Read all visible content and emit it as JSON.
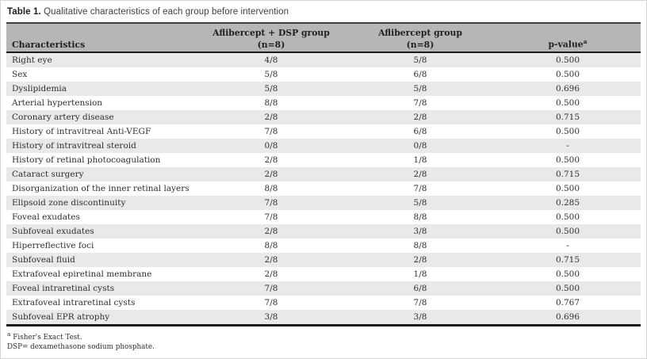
{
  "caption": {
    "label": "Table 1.",
    "text": "Qualitative characteristics of each group before intervention"
  },
  "table": {
    "col1_header": "Characteristics",
    "group1_header": "Aflibercept + DSP group",
    "group1_n": "(n=8)",
    "group2_header": "Aflibercept group",
    "group2_n": "(n=8)",
    "pvalue_header": "p-value",
    "pvalue_sup": "a",
    "rows": [
      {
        "label": "Right eye",
        "g1": "4/8",
        "g2": "5/8",
        "p": "0.500"
      },
      {
        "label": "Sex",
        "g1": "5/8",
        "g2": "6/8",
        "p": "0.500"
      },
      {
        "label": "Dyslipidemia",
        "g1": "5/8",
        "g2": "5/8",
        "p": "0.696"
      },
      {
        "label": "Arterial hypertension",
        "g1": "8/8",
        "g2": "7/8",
        "p": "0.500"
      },
      {
        "label": "Coronary artery disease",
        "g1": "2/8",
        "g2": "2/8",
        "p": "0.715"
      },
      {
        "label": "History of intravitreal Anti-VEGF",
        "g1": "7/8",
        "g2": "6/8",
        "p": "0.500"
      },
      {
        "label": "History of intravitreal steroid",
        "g1": "0/8",
        "g2": "0/8",
        "p": "-"
      },
      {
        "label": "History of retinal photocoagulation",
        "g1": "2/8",
        "g2": "1/8",
        "p": "0.500"
      },
      {
        "label": "Cataract surgery",
        "g1": "2/8",
        "g2": "2/8",
        "p": "0.715"
      },
      {
        "label": "Disorganization of the inner retinal layers",
        "g1": "8/8",
        "g2": "7/8",
        "p": "0.500"
      },
      {
        "label": "Elipsoid zone discontinuity",
        "g1": "7/8",
        "g2": "5/8",
        "p": "0.285"
      },
      {
        "label": "Foveal exudates",
        "g1": "7/8",
        "g2": "8/8",
        "p": "0.500"
      },
      {
        "label": "Subfoveal exudates",
        "g1": "2/8",
        "g2": "3/8",
        "p": "0.500"
      },
      {
        "label": "Hiperreflective foci",
        "g1": "8/8",
        "g2": "8/8",
        "p": "-"
      },
      {
        "label": "Subfoveal fluid",
        "g1": "2/8",
        "g2": "2/8",
        "p": "0.715"
      },
      {
        "label": "Extrafoveal epiretinal membrane",
        "g1": "2/8",
        "g2": "1/8",
        "p": "0.500"
      },
      {
        "label": "Foveal intraretinal cysts",
        "g1": "7/8",
        "g2": "6/8",
        "p": "0.500"
      },
      {
        "label": "Extrafoveal intraretinal cysts",
        "g1": "7/8",
        "g2": "7/8",
        "p": "0.767"
      },
      {
        "label": "Subfoveal EPR atrophy",
        "g1": "3/8",
        "g2": "3/8",
        "p": "0.696"
      }
    ]
  },
  "footnotes": [
    {
      "sup": "a",
      "text": "Fisher's Exact Test."
    },
    {
      "sup": "",
      "text": "DSP= dexamethasone sodium phosphate."
    }
  ],
  "colors": {
    "header_bg": "#b6b6b6",
    "alt_row_bg": "#e9e9e9",
    "rule_dark": "#1a1a1a",
    "text": "#2e2e2e"
  }
}
